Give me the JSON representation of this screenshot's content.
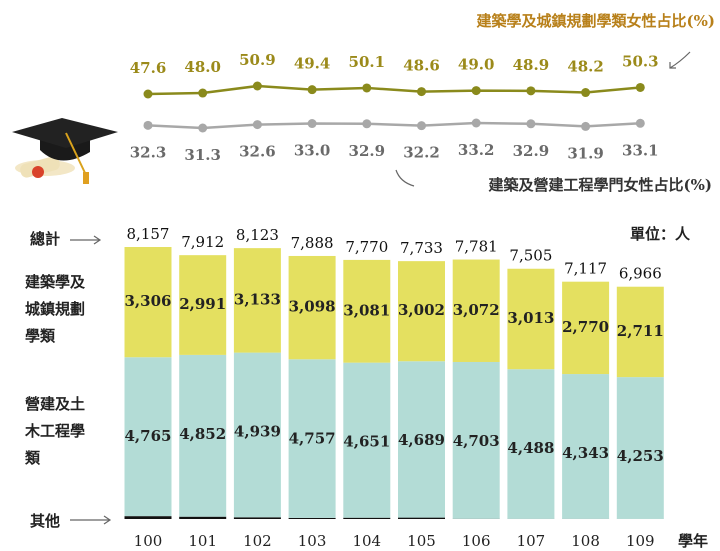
{
  "chart_data": {
    "type": "bar",
    "categories": [
      "100",
      "101",
      "102",
      "103",
      "104",
      "105",
      "106",
      "107",
      "108",
      "109"
    ],
    "x_label": "學年",
    "unit": "單位：人",
    "series": [
      {
        "name": "其他",
        "color": "#111111",
        "values": [
          86,
          69,
          51,
          33,
          38,
          42,
          6,
          4,
          4,
          2
        ]
      },
      {
        "name": "營建及土木工程學類",
        "color": "#b3dcd6",
        "values": [
          4765,
          4852,
          4939,
          4757,
          4651,
          4689,
          4703,
          4488,
          4343,
          4253
        ],
        "value_labels": [
          "4,765",
          "4,852",
          "4,939",
          "4,757",
          "4,651",
          "4,689",
          "4,703",
          "4,488",
          "4,343",
          "4,253"
        ]
      },
      {
        "name": "建築學及城鎮規劃學類",
        "color": "#e4e060",
        "values": [
          3306,
          2991,
          3133,
          3098,
          3081,
          3002,
          3072,
          3013,
          2770,
          2711
        ],
        "value_labels": [
          "3,306",
          "2,991",
          "3,133",
          "3,098",
          "3,081",
          "3,002",
          "3,072",
          "3,013",
          "2,770",
          "2,711"
        ]
      }
    ],
    "total_name": "總計",
    "totals": [
      8157,
      7912,
      8123,
      7888,
      7770,
      7733,
      7781,
      7505,
      7117,
      6966
    ],
    "total_labels": [
      "8,157",
      "7,912",
      "8,123",
      "7,888",
      "7,770",
      "7,733",
      "7,781",
      "7,505",
      "7,117",
      "6,966"
    ],
    "line_series": [
      {
        "type": "line",
        "name": "建築學及城鎮規劃學類女性占比(%)",
        "color": "#8a8a1c",
        "label_color": "#9b8a1a",
        "values": [
          47.6,
          48.0,
          50.9,
          49.4,
          50.1,
          48.6,
          49.0,
          48.9,
          48.2,
          50.3
        ],
        "value_labels": [
          "47.6",
          "48.0",
          "50.9",
          "49.4",
          "50.1",
          "48.6",
          "49.0",
          "48.9",
          "48.2",
          "50.3"
        ]
      },
      {
        "type": "line",
        "name": "建築及營建工程學門女性占比(%)",
        "color": "#a8a8a8",
        "label_color": "#6a6a6a",
        "values": [
          32.3,
          31.3,
          32.6,
          33.0,
          32.9,
          32.2,
          33.2,
          32.9,
          31.9,
          33.1
        ],
        "value_labels": [
          "32.3",
          "31.3",
          "32.6",
          "33.0",
          "32.9",
          "32.2",
          "33.2",
          "32.9",
          "31.9",
          "33.1"
        ]
      }
    ]
  }
}
